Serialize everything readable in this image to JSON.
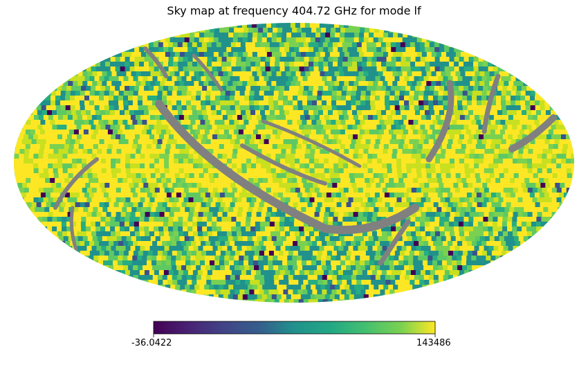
{
  "chart_data": {
    "type": "heatmap",
    "projection": "mollweide",
    "title": "Sky map at frequency 404.72 GHz for mode lf",
    "colormap": "viridis",
    "colorbar": {
      "min": -36.0422,
      "max": 143486,
      "min_label": "-36.0422",
      "max_label": "143486",
      "orientation": "horizontal",
      "placement": "bottom"
    },
    "missing_value_color": "#808080",
    "background": "#ffffff"
  }
}
